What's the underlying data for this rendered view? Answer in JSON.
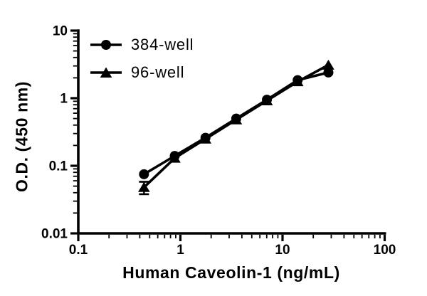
{
  "chart_data": {
    "type": "line",
    "title": "",
    "xlabel": "Human Caveolin-1 (ng/mL)",
    "ylabel": "O.D. (450 nm)",
    "x_scale": "log",
    "y_scale": "log",
    "xlim": [
      0.1,
      100
    ],
    "ylim": [
      0.01,
      10
    ],
    "x_major_ticks": [
      0.1,
      1,
      10,
      100
    ],
    "x_major_tick_labels": [
      "0.1",
      "1",
      "10",
      "100"
    ],
    "y_major_ticks": [
      0.01,
      0.1,
      1,
      10
    ],
    "y_major_tick_labels": [
      "0.01",
      "0.1",
      "1",
      "10"
    ],
    "grid": false,
    "legend_position": "top-left inside",
    "line_color": "#000000",
    "background_color": "#ffffff",
    "x": [
      0.44,
      0.88,
      1.76,
      3.52,
      7.03,
      14.06,
      28.13
    ],
    "series": [
      {
        "name": "384-well",
        "marker": "circle",
        "values": [
          0.075,
          0.14,
          0.26,
          0.5,
          0.95,
          1.85,
          2.4
        ]
      },
      {
        "name": "96-well",
        "marker": "triangle",
        "values": [
          0.048,
          0.13,
          0.25,
          0.48,
          0.92,
          1.76,
          3.1
        ],
        "error_bars": [
          {
            "index": 0,
            "low": 0.038,
            "high": 0.058
          }
        ]
      }
    ]
  }
}
